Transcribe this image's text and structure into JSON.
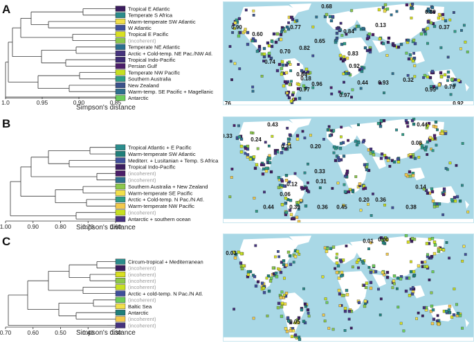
{
  "colors": {
    "ocean": "#a9d8e6",
    "land": "#ffffff",
    "border": "#3a3a3a",
    "incoherent_text": "#9a9a9a",
    "palette": [
      "#3b1d5e",
      "#2b8c8c",
      "#6ecb5a",
      "#d9e021",
      "#f2c94c",
      "#3f4f9a",
      "#1f7f7a",
      "#89c95b"
    ]
  },
  "panels": [
    {
      "letter": "A",
      "axis_label": "Simpson's distance",
      "ticks": [
        "1.0",
        "0.95",
        "0.90",
        "0.85"
      ],
      "clusters": [
        {
          "name": "Tropical E Atlantic",
          "color": "#3b1d5e",
          "incoherent": false
        },
        {
          "name": "Temperate S Africa",
          "color": "#2b8c8c",
          "incoherent": false
        },
        {
          "name": "Warm-temperate SW Atlantic",
          "color": "#f2e04a",
          "incoherent": false
        },
        {
          "name": "W Atlantic",
          "color": "#3f4f9a",
          "incoherent": false
        },
        {
          "name": "Tropical E Pacific",
          "color": "#d9e021",
          "incoherent": false
        },
        {
          "name": "(incoherent)",
          "color": "#8cc84b",
          "incoherent": true
        },
        {
          "name": "Temperate NE Atlantic",
          "color": "#2a6f8f",
          "incoherent": false
        },
        {
          "name": "Arctic + Cold-temp. NE Pac./NW Atl.",
          "color": "#46337e",
          "incoherent": false
        },
        {
          "name": "Tropical Indo-Pacific",
          "color": "#3b2a73",
          "incoherent": false
        },
        {
          "name": "Persian Gulf",
          "color": "#4b1d68",
          "incoherent": false
        },
        {
          "name": "Temperate NW Pacific",
          "color": "#c7e020",
          "incoherent": false
        },
        {
          "name": "Southern Australia",
          "color": "#2f9c87",
          "incoherent": false
        },
        {
          "name": "New Zealand",
          "color": "#3b528b",
          "incoherent": false
        },
        {
          "name": "Warm-temp. SE Pacific + Magellanic",
          "color": "#2e6f8e",
          "incoherent": false
        },
        {
          "name": "Antarctic",
          "color": "#6ccd5a",
          "incoherent": false
        }
      ],
      "map_labels": [
        "0.68",
        "0.89",
        "0.90",
        "0.60",
        "0.77",
        "0.65",
        "0.84",
        "0.13",
        "0.37",
        "0.70",
        "0.82",
        "0.74",
        "0.83",
        "0.92",
        "0.84",
        "0.18",
        "0.96",
        "0.44",
        "0.93",
        "0.32",
        "0.79",
        "0.77",
        "0.97",
        "0.95",
        "0.76",
        "0.92"
      ]
    },
    {
      "letter": "B",
      "axis_label": "Simpson's distance",
      "ticks": [
        "1.00",
        "0.90",
        "0.80",
        "0.70",
        "0.60"
      ],
      "clusters": [
        {
          "name": "Tropical Atlantic + E Pacific",
          "color": "#2b8c8c",
          "incoherent": false
        },
        {
          "name": "Warm-temperate SW Atlantic",
          "color": "#1f7f7a",
          "incoherent": false
        },
        {
          "name": "Mediterr. + Lusitanian + Temp. S Africa",
          "color": "#3f4f9a",
          "incoherent": false
        },
        {
          "name": "Tropical Indo-Pacific",
          "color": "#3b1d5e",
          "incoherent": false
        },
        {
          "name": "(incoherent)",
          "color": "#4b1d68",
          "incoherent": true
        },
        {
          "name": "(incoherent)",
          "color": "#2e6f8e",
          "incoherent": true
        },
        {
          "name": "Southern Australia + New Zealand",
          "color": "#8cc84b",
          "incoherent": false
        },
        {
          "name": "Warm-temperate SE Pacific",
          "color": "#f2e04a",
          "incoherent": false
        },
        {
          "name": "Arctic + Cold-temp. N Pac./N Atl.",
          "color": "#2f9c87",
          "incoherent": false
        },
        {
          "name": "Warm-temperate NW Pacific",
          "color": "#f2c94c",
          "incoherent": false
        },
        {
          "name": "(incoherent)",
          "color": "#c7e020",
          "incoherent": true
        },
        {
          "name": "Antarctic + southern ocean",
          "color": "#46337e",
          "incoherent": false
        }
      ],
      "map_labels": [
        "0.43",
        "0.44",
        "0.33",
        "0.24",
        "0.31",
        "0.20",
        "0.08",
        "0.33",
        "0.31",
        "0.12",
        "0.14",
        "0.06",
        "0.20",
        "0.36",
        "0.44",
        "0.39",
        "0.36",
        "0.45",
        "0.38"
      ]
    },
    {
      "letter": "C",
      "axis_label": "Simpson's distance",
      "ticks": [
        "0.70",
        "0.60",
        "0.50",
        "0.40",
        "0.30"
      ],
      "clusters": [
        {
          "name": "Circum-tropical + Mediterranean",
          "color": "#2b8c8c",
          "incoherent": false
        },
        {
          "name": "(incoherent)",
          "color": "#3b1d5e",
          "incoherent": true
        },
        {
          "name": "(incoherent)",
          "color": "#d9e021",
          "incoherent": true
        },
        {
          "name": "(incoherent)",
          "color": "#8cc84b",
          "incoherent": true
        },
        {
          "name": "(incoherent)",
          "color": "#c7e020",
          "incoherent": true
        },
        {
          "name": "Arctic + cold-temp. N Pac./N Atl.",
          "color": "#3f4f9a",
          "incoherent": false
        },
        {
          "name": "(incoherent)",
          "color": "#6ccd5a",
          "incoherent": true
        },
        {
          "name": "Baltic Sea",
          "color": "#f2e04a",
          "incoherent": false
        },
        {
          "name": "Antarctic",
          "color": "#1f7f7a",
          "incoherent": false
        },
        {
          "name": "(incoherent)",
          "color": "#f2c94c",
          "incoherent": true
        },
        {
          "name": "(incoherent)",
          "color": "#46337e",
          "incoherent": true
        }
      ],
      "map_labels": [
        "0.01",
        "0.00",
        "0.03",
        "0.05"
      ]
    }
  ]
}
